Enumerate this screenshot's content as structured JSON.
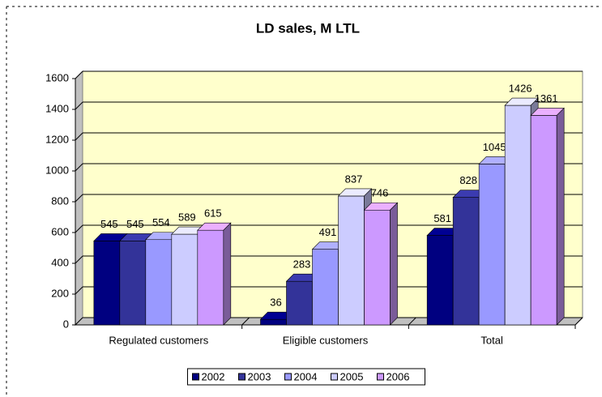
{
  "chart_data": {
    "type": "bar3d",
    "title": "LD sales, M LTL",
    "categories": [
      "Regulated customers",
      "Eligible customers",
      "Total"
    ],
    "series": [
      {
        "name": "2002",
        "color": "#000080",
        "values": [
          545,
          36,
          581
        ]
      },
      {
        "name": "2003",
        "color": "#333399",
        "values": [
          545,
          283,
          828
        ]
      },
      {
        "name": "2004",
        "color": "#9999ff",
        "values": [
          554,
          491,
          1045
        ]
      },
      {
        "name": "2005",
        "color": "#ccccff",
        "values": [
          589,
          837,
          1426
        ]
      },
      {
        "name": "2006",
        "color": "#cc99ff",
        "values": [
          615,
          746,
          1361
        ]
      }
    ],
    "ylim": [
      0,
      1600
    ],
    "yticks": [
      0,
      200,
      400,
      600,
      800,
      1000,
      1200,
      1400,
      1600
    ],
    "grid": true,
    "legend": "bottom"
  }
}
